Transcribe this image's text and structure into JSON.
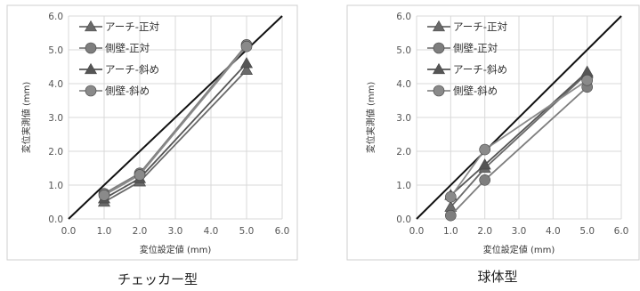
{
  "chart_data": [
    {
      "type": "line",
      "caption": "チェッカー型",
      "xlabel": "変位設定値 (mm)",
      "ylabel": "変位実測値 (mm)",
      "xlim": [
        0,
        6
      ],
      "ylim": [
        0,
        6
      ],
      "xticks": [
        "0.0",
        "1.0",
        "2.0",
        "3.0",
        "4.0",
        "5.0",
        "6.0"
      ],
      "yticks": [
        "0.0",
        "1.0",
        "2.0",
        "3.0",
        "4.0",
        "5.0",
        "6.0"
      ],
      "grid": true,
      "legend_position": "top-left",
      "reference_line": [
        [
          0,
          0
        ],
        [
          6,
          6
        ]
      ],
      "x": [
        1,
        2,
        5
      ],
      "series": [
        {
          "name": "アーチ-正対",
          "marker": "triangle",
          "values": [
            0.5,
            1.1,
            4.4
          ]
        },
        {
          "name": "側壁-正対",
          "marker": "circle",
          "values": [
            0.75,
            1.35,
            5.15
          ]
        },
        {
          "name": "アーチ-斜め",
          "marker": "triangle",
          "values": [
            0.6,
            1.2,
            4.6
          ]
        },
        {
          "name": "側壁-斜め",
          "marker": "circle",
          "values": [
            0.7,
            1.3,
            5.1
          ]
        }
      ]
    },
    {
      "type": "line",
      "caption": "球体型",
      "xlabel": "変位設定値 (mm)",
      "ylabel": "変位実測値 (mm)",
      "xlim": [
        0,
        6
      ],
      "ylim": [
        0,
        6
      ],
      "xticks": [
        "0.0",
        "1.0",
        "2.0",
        "3.0",
        "4.0",
        "5.0",
        "6.0"
      ],
      "yticks": [
        "0.0",
        "1.0",
        "2.0",
        "3.0",
        "4.0",
        "5.0",
        "6.0"
      ],
      "grid": true,
      "legend_position": "top-left",
      "reference_line": [
        [
          0,
          0
        ],
        [
          6,
          6
        ]
      ],
      "x": [
        1,
        2,
        5
      ],
      "series": [
        {
          "name": "アーチ-正対",
          "marker": "triangle",
          "values": [
            0.35,
            1.5,
            4.3
          ]
        },
        {
          "name": "側壁-正対",
          "marker": "circle",
          "values": [
            0.1,
            1.15,
            3.9
          ]
        },
        {
          "name": "アーチ-斜め",
          "marker": "triangle",
          "values": [
            0.7,
            1.6,
            4.35
          ]
        },
        {
          "name": "側壁-斜め",
          "marker": "circle",
          "values": [
            0.65,
            2.05,
            4.1
          ]
        }
      ]
    }
  ],
  "colors": {
    "series": [
      "#6a6a6a",
      "#7e7e7e",
      "#555555",
      "#8a8a8a"
    ],
    "reference": "#111111",
    "grid": "#d9d9d9",
    "border": "#cfcfcf",
    "axis_text": "#555555"
  }
}
